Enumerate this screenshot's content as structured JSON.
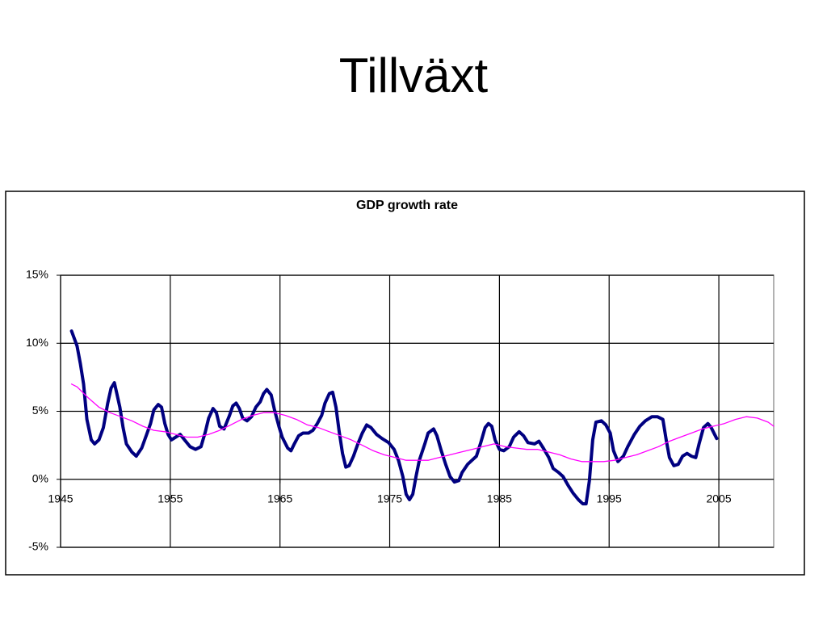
{
  "page_title": "Tillväxt",
  "chart_data": {
    "type": "line",
    "title": "GDP growth rate",
    "xlim": [
      1945,
      2010
    ],
    "xticks": [
      1945,
      1955,
      1965,
      1975,
      1985,
      1995,
      2005
    ],
    "ylim": [
      -5,
      15
    ],
    "yticks": [
      {
        "value": -5,
        "label": "-5%"
      },
      {
        "value": 0,
        "label": "0%"
      },
      {
        "value": 5,
        "label": "5%"
      },
      {
        "value": 10,
        "label": "10%"
      },
      {
        "value": 15,
        "label": "15%"
      }
    ],
    "grid": true,
    "series": [
      {
        "color": "#000080",
        "width": 4,
        "x": [
          1946.0,
          1946.5,
          1946.8,
          1947.1,
          1947.4,
          1947.8,
          1948.1,
          1948.5,
          1948.9,
          1949.3,
          1949.6,
          1949.9,
          1950.1,
          1950.4,
          1950.7,
          1951.0,
          1951.5,
          1951.9,
          1952.4,
          1952.8,
          1953.2,
          1953.5,
          1953.9,
          1954.2,
          1954.5,
          1954.8,
          1955.1,
          1955.5,
          1955.9,
          1956.3,
          1956.8,
          1957.3,
          1957.8,
          1958.2,
          1958.5,
          1958.9,
          1959.2,
          1959.5,
          1959.9,
          1960.4,
          1960.7,
          1961.0,
          1961.3,
          1961.6,
          1962.0,
          1962.4,
          1962.8,
          1963.2,
          1963.5,
          1963.8,
          1964.2,
          1964.5,
          1964.9,
          1965.2,
          1965.7,
          1966.0,
          1966.3,
          1966.7,
          1967.1,
          1967.6,
          1968.0,
          1968.4,
          1968.8,
          1969.1,
          1969.5,
          1969.8,
          1970.1,
          1970.4,
          1970.7,
          1971.0,
          1971.3,
          1971.7,
          1972.1,
          1972.5,
          1972.9,
          1973.3,
          1973.8,
          1974.3,
          1974.9,
          1975.4,
          1975.8,
          1976.2,
          1976.5,
          1976.8,
          1977.1,
          1977.4,
          1977.7,
          1978.2,
          1978.5,
          1979.0,
          1979.3,
          1979.7,
          1980.1,
          1980.5,
          1980.9,
          1981.3,
          1981.6,
          1982.1,
          1982.5,
          1982.9,
          1983.3,
          1983.7,
          1984.0,
          1984.3,
          1984.6,
          1985.0,
          1985.4,
          1985.9,
          1986.3,
          1986.8,
          1987.2,
          1987.6,
          1988.2,
          1988.6,
          1989.0,
          1989.5,
          1989.9,
          1990.4,
          1990.8,
          1991.3,
          1991.7,
          1992.2,
          1992.6,
          1992.9,
          1993.2,
          1993.5,
          1993.8,
          1994.3,
          1994.7,
          1995.1,
          1995.4,
          1995.8,
          1996.3,
          1996.7,
          1997.3,
          1997.8,
          1998.3,
          1998.9,
          1999.4,
          1999.9,
          2000.2,
          2000.5,
          2000.9,
          2001.3,
          2001.7,
          2002.1,
          2002.5,
          2002.9,
          2003.2,
          2003.6,
          2004.0,
          2004.3,
          2004.8
        ],
        "values": [
          10.9,
          9.8,
          8.5,
          7.0,
          4.4,
          2.9,
          2.6,
          2.9,
          3.8,
          5.6,
          6.7,
          7.1,
          6.4,
          5.3,
          3.8,
          2.6,
          2.0,
          1.7,
          2.3,
          3.2,
          4.1,
          5.1,
          5.5,
          5.3,
          4.1,
          3.3,
          2.9,
          3.1,
          3.3,
          2.9,
          2.4,
          2.2,
          2.4,
          3.5,
          4.5,
          5.2,
          4.9,
          3.9,
          3.7,
          4.7,
          5.4,
          5.6,
          5.2,
          4.5,
          4.3,
          4.6,
          5.3,
          5.7,
          6.3,
          6.6,
          6.2,
          5.1,
          3.9,
          3.1,
          2.3,
          2.1,
          2.6,
          3.2,
          3.4,
          3.4,
          3.6,
          4.1,
          4.7,
          5.6,
          6.3,
          6.4,
          5.3,
          3.5,
          1.9,
          0.9,
          1.0,
          1.7,
          2.6,
          3.4,
          4.0,
          3.8,
          3.3,
          3.0,
          2.7,
          2.2,
          1.4,
          0.2,
          -1.1,
          -1.5,
          -1.1,
          0.2,
          1.4,
          2.6,
          3.4,
          3.7,
          3.2,
          2.1,
          1.1,
          0.2,
          -0.2,
          -0.1,
          0.5,
          1.1,
          1.4,
          1.7,
          2.7,
          3.8,
          4.1,
          3.9,
          2.9,
          2.2,
          2.1,
          2.4,
          3.1,
          3.5,
          3.2,
          2.7,
          2.6,
          2.8,
          2.3,
          1.6,
          0.8,
          0.5,
          0.2,
          -0.5,
          -1.0,
          -1.5,
          -1.8,
          -1.8,
          -0.1,
          2.9,
          4.2,
          4.3,
          4.0,
          3.4,
          2.1,
          1.3,
          1.7,
          2.4,
          3.3,
          3.9,
          4.3,
          4.6,
          4.6,
          4.4,
          2.9,
          1.6,
          1.0,
          1.1,
          1.7,
          1.9,
          1.7,
          1.6,
          2.6,
          3.8,
          4.1,
          3.8,
          3.0
        ]
      },
      {
        "color": "#ff00ff",
        "width": 1.3,
        "x": [
          1946.0,
          1946.5,
          1947.5,
          1948.5,
          1949.5,
          1950.5,
          1951.5,
          1952.5,
          1953.5,
          1954.5,
          1955.5,
          1956.5,
          1957.5,
          1958.5,
          1959.5,
          1960.5,
          1961.5,
          1962.5,
          1963.5,
          1964.5,
          1965.5,
          1966.5,
          1967.5,
          1968.5,
          1969.5,
          1970.5,
          1971.5,
          1972.5,
          1973.5,
          1974.5,
          1975.5,
          1976.5,
          1977.5,
          1978.5,
          1979.5,
          1980.5,
          1981.5,
          1982.5,
          1983.5,
          1984.5,
          1985.5,
          1986.5,
          1987.5,
          1988.5,
          1989.5,
          1990.5,
          1991.5,
          1992.5,
          1993.5,
          1994.5,
          1995.5,
          1996.5,
          1997.5,
          1998.5,
          1999.5,
          2000.5,
          2001.5,
          2002.5,
          2003.5,
          2004.5,
          2005.5,
          2006.5,
          2007.5,
          2008.5,
          2009.5,
          2010
        ],
        "values": [
          7.0,
          6.8,
          6.0,
          5.3,
          4.9,
          4.6,
          4.3,
          3.9,
          3.6,
          3.5,
          3.3,
          3.1,
          3.1,
          3.3,
          3.6,
          4.0,
          4.4,
          4.7,
          4.9,
          4.9,
          4.7,
          4.4,
          4.0,
          3.8,
          3.5,
          3.2,
          2.9,
          2.5,
          2.1,
          1.8,
          1.6,
          1.4,
          1.4,
          1.4,
          1.6,
          1.8,
          2.0,
          2.2,
          2.4,
          2.6,
          2.4,
          2.3,
          2.2,
          2.2,
          2.0,
          1.8,
          1.5,
          1.3,
          1.3,
          1.3,
          1.4,
          1.6,
          1.8,
          2.1,
          2.4,
          2.8,
          3.1,
          3.4,
          3.7,
          3.9,
          4.1,
          4.4,
          4.6,
          4.5,
          4.2,
          3.9
        ]
      }
    ]
  }
}
